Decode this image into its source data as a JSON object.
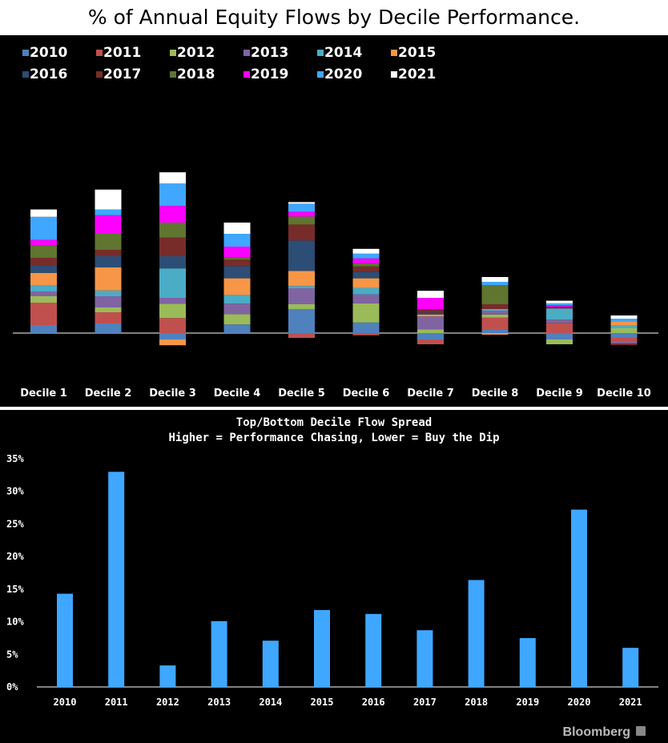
{
  "page_title": "% of Annual Equity Flows by Decile Performance.",
  "chart_data": [
    {
      "type": "stacked-bar",
      "title": "% of Annual Equity Flows by Decile Performance.",
      "legend_position": "top-left",
      "categories": [
        "Decile 1",
        "Decile 2",
        "Decile 3",
        "Decile 4",
        "Decile 5",
        "Decile 6",
        "Decile 7",
        "Decile 8",
        "Decile 9",
        "Decile 10"
      ],
      "series": [
        {
          "name": "2010",
          "color": "#4f81bd",
          "values": [
            2.5,
            3.0,
            -2.0,
            2.7,
            7.5,
            3.3,
            -2.0,
            1.0,
            -2.0,
            -1.5
          ]
        },
        {
          "name": "2011",
          "color": "#c0504d",
          "values": [
            7.0,
            3.5,
            4.7,
            0,
            -1.5,
            -0.7,
            -1.5,
            3.8,
            3.2,
            -1.0
          ]
        },
        {
          "name": "2012",
          "color": "#9bbb59",
          "values": [
            2.0,
            1.5,
            4.5,
            3.2,
            1.5,
            6.0,
            1.2,
            1.0,
            -1.5,
            1.5
          ]
        },
        {
          "name": "2013",
          "color": "#8064a2",
          "values": [
            1.5,
            3.5,
            1.8,
            3.3,
            5.0,
            2.8,
            4.0,
            1.2,
            1.0,
            -0.8
          ]
        },
        {
          "name": "2014",
          "color": "#4bacc6",
          "values": [
            2.0,
            1.8,
            9.2,
            2.7,
            0.7,
            2.0,
            0,
            0.5,
            3.5,
            1.0
          ]
        },
        {
          "name": "2015",
          "color": "#f79646",
          "values": [
            3.8,
            7.2,
            -1.8,
            5.2,
            4.7,
            3.0,
            0.6,
            -0.5,
            0,
            1.0
          ]
        },
        {
          "name": "2016",
          "color": "#2c4d75",
          "values": [
            2.2,
            3.5,
            3.8,
            3.8,
            9.5,
            2.0,
            0.6,
            0,
            0,
            0
          ]
        },
        {
          "name": "2017",
          "color": "#772c2a",
          "values": [
            2.5,
            2.0,
            5.8,
            2.0,
            5.0,
            1.7,
            1.0,
            1.5,
            0.5,
            -0.5
          ]
        },
        {
          "name": "2018",
          "color": "#5f7530",
          "values": [
            3.8,
            5.0,
            4.7,
            0.8,
            2.5,
            1.0,
            0,
            6.0,
            0,
            0
          ]
        },
        {
          "name": "2019",
          "color": "#ff00ff",
          "values": [
            1.8,
            5.8,
            5.2,
            3.3,
            1.5,
            1.5,
            3.6,
            0,
            0.5,
            0
          ]
        },
        {
          "name": "2020",
          "color": "#3fa7ff",
          "values": [
            7.2,
            1.8,
            7.0,
            4.0,
            2.5,
            1.5,
            0,
            1.0,
            0.6,
            1.0
          ]
        },
        {
          "name": "2021",
          "color": "#ffffff",
          "values": [
            2.3,
            6.2,
            3.5,
            3.5,
            0.5,
            1.5,
            2.2,
            1.5,
            0.8,
            1.0
          ]
        }
      ]
    },
    {
      "type": "bar",
      "title": "Top/Bottom Decile Flow Spread",
      "subtitle": "Higher = Performance Chasing, Lower = Buy the Dip",
      "categories": [
        "2010",
        "2011",
        "2012",
        "2013",
        "2014",
        "2015",
        "2016",
        "2017",
        "2018",
        "2019",
        "2020",
        "2021"
      ],
      "values": [
        14.3,
        33.0,
        3.3,
        10.1,
        7.1,
        11.8,
        11.2,
        8.7,
        16.4,
        7.5,
        27.2,
        6.0
      ],
      "ylim": [
        0,
        35
      ],
      "yticks": [
        "0%",
        "5%",
        "10%",
        "15%",
        "20%",
        "25%",
        "30%",
        "35%"
      ],
      "bar_color": "#3fa7ff",
      "grid": false
    }
  ],
  "watermark": "Bloomberg"
}
